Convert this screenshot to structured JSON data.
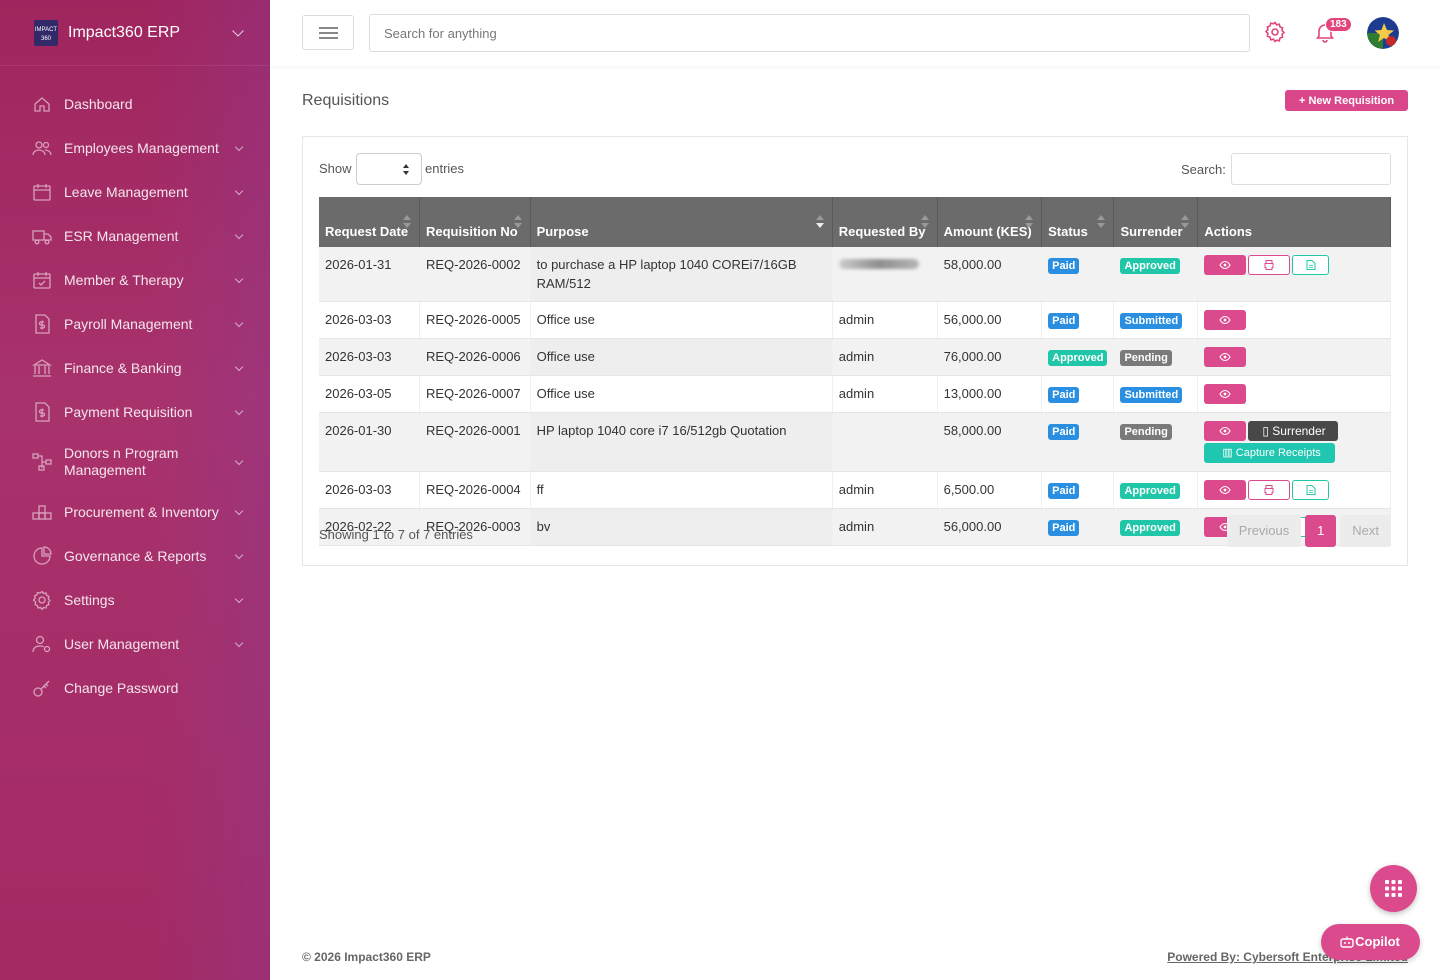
{
  "app": {
    "title": "Impact360 ERP"
  },
  "sidebar": {
    "items": [
      {
        "label": "Dashboard",
        "icon": "home-icon",
        "chevron": false
      },
      {
        "label": "Employees Management",
        "icon": "users-icon",
        "chevron": true
      },
      {
        "label": "Leave Management",
        "icon": "calendar-icon",
        "chevron": true
      },
      {
        "label": "ESR Management",
        "icon": "truck-icon",
        "chevron": true
      },
      {
        "label": "Member & Therapy",
        "icon": "calendar-check-icon",
        "chevron": true
      },
      {
        "label": "Payroll Management",
        "icon": "dollar-file-icon",
        "chevron": true
      },
      {
        "label": "Finance & Banking",
        "icon": "bank-icon",
        "chevron": true
      },
      {
        "label": "Payment Requisition",
        "icon": "dollar-file-icon",
        "chevron": true
      },
      {
        "label": "Donors n Program Management",
        "icon": "network-icon",
        "chevron": true
      },
      {
        "label": "Procurement & Inventory",
        "icon": "boxes-icon",
        "chevron": true
      },
      {
        "label": "Governance & Reports",
        "icon": "pie-chart-icon",
        "chevron": true
      },
      {
        "label": "Settings",
        "icon": "gear-icon",
        "chevron": true
      },
      {
        "label": "User Management",
        "icon": "user-cog-icon",
        "chevron": true
      },
      {
        "label": "Change Password",
        "icon": "key-icon",
        "chevron": false
      }
    ]
  },
  "header": {
    "search_placeholder": "Search for anything",
    "notification_count": "183"
  },
  "main": {
    "title": "Requisitions",
    "new_button": "New Requisition",
    "show_label": "Show",
    "entries_label": "entries",
    "search_label": "Search:",
    "columns": [
      "Request Date",
      "Requisition No",
      "Purpose",
      "Requested By",
      "Amount (KES)",
      "Status",
      "Surrender",
      "Actions"
    ],
    "rows": [
      {
        "date": "2026-01-31",
        "no": "REQ-2026-0002",
        "purpose": "to purchase a HP laptop 1040 COREi7/16GB RAM/512",
        "by": "",
        "by_blurred": true,
        "amount": "58,000.00",
        "status": "Paid",
        "surrender": "Approved",
        "actions": [
          "view",
          "print",
          "doc"
        ]
      },
      {
        "date": "2026-03-03",
        "no": "REQ-2026-0005",
        "purpose": "Office use",
        "by": "admin",
        "by_blurred": false,
        "amount": "56,000.00",
        "status": "Paid",
        "surrender": "Submitted",
        "actions": [
          "view"
        ]
      },
      {
        "date": "2026-03-03",
        "no": "REQ-2026-0006",
        "purpose": "Office use",
        "by": "admin",
        "by_blurred": false,
        "amount": "76,000.00",
        "status": "Approved",
        "surrender": "Pending",
        "actions": [
          "view"
        ]
      },
      {
        "date": "2026-03-05",
        "no": "REQ-2026-0007",
        "purpose": "Office use",
        "by": "admin",
        "by_blurred": false,
        "amount": "13,000.00",
        "status": "Paid",
        "surrender": "Submitted",
        "actions": [
          "view"
        ]
      },
      {
        "date": "2026-01-30",
        "no": "REQ-2026-0001",
        "purpose": "HP laptop 1040 core i7 16/512gb Quotation",
        "by": "",
        "by_blurred": false,
        "amount": "58,000.00",
        "status": "Paid",
        "surrender": "Pending",
        "actions": [
          "view",
          "surrender",
          "capture"
        ]
      },
      {
        "date": "2026-03-03",
        "no": "REQ-2026-0004",
        "purpose": "ff",
        "by": "admin",
        "by_blurred": false,
        "amount": "6,500.00",
        "status": "Paid",
        "surrender": "Approved",
        "actions": [
          "view",
          "print",
          "doc"
        ]
      },
      {
        "date": "2026-02-22",
        "no": "REQ-2026-0003",
        "purpose": "bv",
        "by": "admin",
        "by_blurred": false,
        "amount": "56,000.00",
        "status": "Paid",
        "surrender": "Approved",
        "actions": [
          "view",
          "print",
          "doc"
        ]
      }
    ],
    "surrender_label": "Surrender",
    "capture_label": "Capture Receipts",
    "info": "Showing 1 to 7 of 7 entries",
    "pager": {
      "prev": "Previous",
      "current": "1",
      "next": "Next"
    }
  },
  "status_colors": {
    "Paid": "#2a8fe0",
    "Approved": "#1fc7a8",
    "Submitted": "#2a8fe0",
    "Pending": "#7a7a7a"
  },
  "footer": {
    "copyright": "© 2026 Impact360 ERP",
    "powered": "Powered By: Cybersoft Enterprise Limited"
  },
  "fab": {
    "copilot_label": "Copilot"
  }
}
